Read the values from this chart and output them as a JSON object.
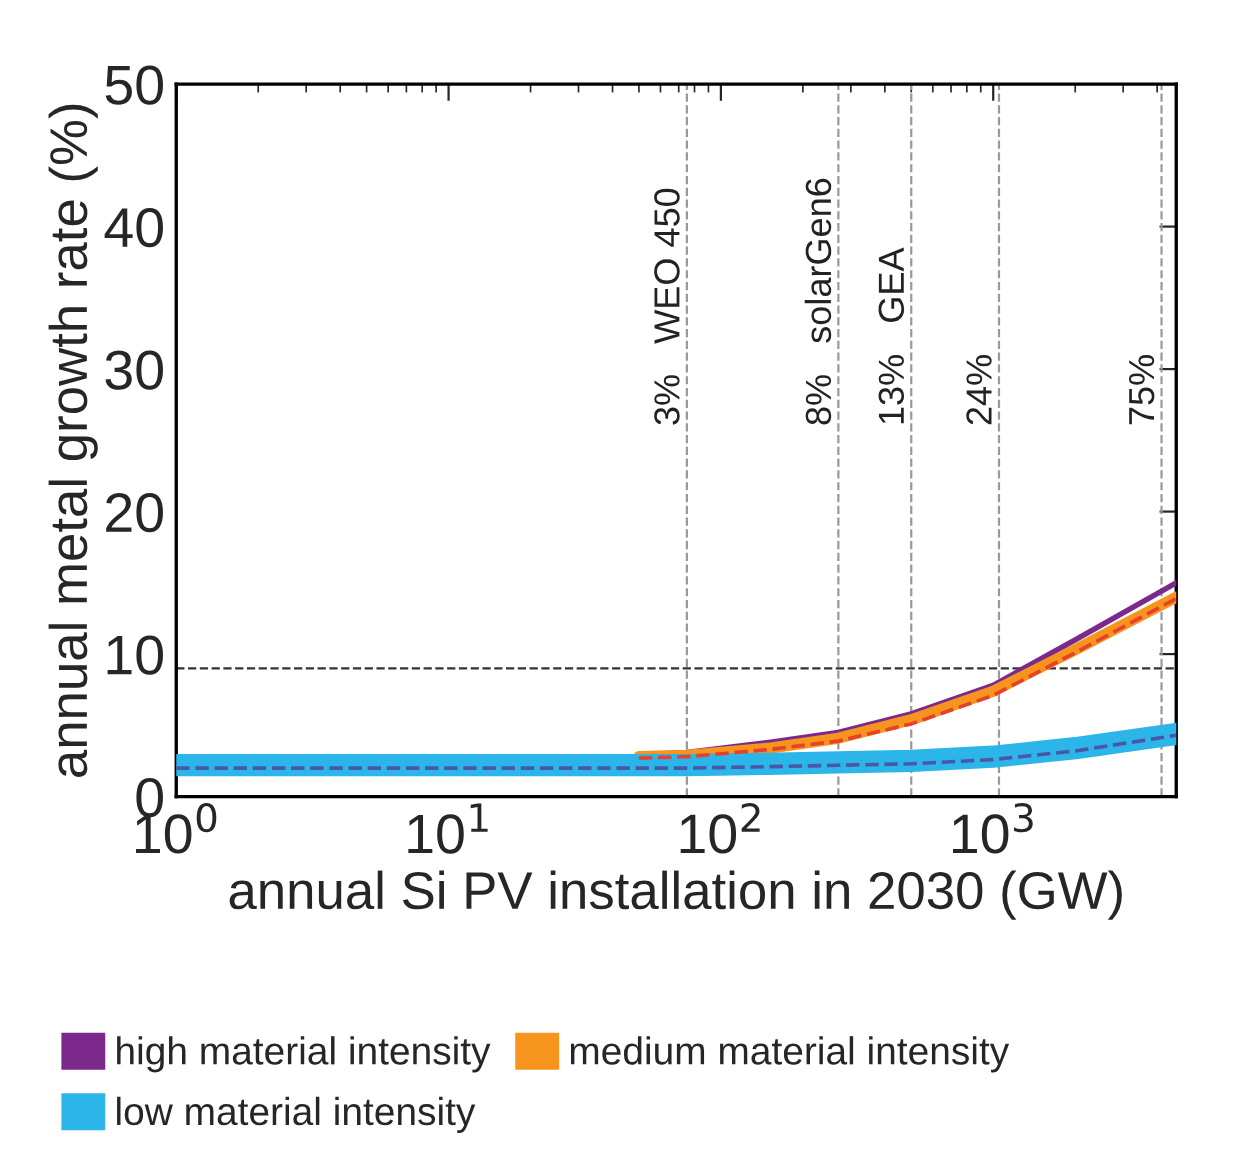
{
  "chart_data": {
    "type": "line",
    "xlabel": "annual Si PV installation in 2030 (GW)",
    "ylabel": "annual metal growth rate (%)",
    "x": [
      1,
      3,
      10,
      30,
      50,
      75,
      150,
      270,
      500,
      1000,
      2000,
      4700
    ],
    "series": [
      {
        "name": "high material intensity",
        "color": "#7b2a8c",
        "values": [
          null,
          null,
          null,
          null,
          2.9,
          3.1,
          3.8,
          4.5,
          5.8,
          7.8,
          11.0,
          15.0
        ]
      },
      {
        "name": "medium material intensity",
        "color": "#f7941d",
        "values": [
          null,
          null,
          null,
          null,
          2.8,
          2.9,
          3.4,
          4.1,
          5.4,
          7.4,
          10.3,
          14.0
        ]
      },
      {
        "color": "#e8402a",
        "line_style": "dashed",
        "values": [
          null,
          null,
          null,
          null,
          2.7,
          2.8,
          3.3,
          3.9,
          5.1,
          7.1,
          10.1,
          13.9
        ]
      },
      {
        "name": "low material intensity",
        "color": "#2bb5e8",
        "values": [
          2.2,
          2.2,
          2.2,
          2.2,
          2.2,
          2.2,
          2.3,
          2.4,
          2.5,
          2.8,
          3.4,
          4.4
        ]
      },
      {
        "color": "#4a56a6",
        "line_style": "dashed",
        "values": [
          2.0,
          2.0,
          2.0,
          2.0,
          2.0,
          2.0,
          2.1,
          2.2,
          2.3,
          2.6,
          3.2,
          4.3
        ]
      }
    ],
    "log": "x",
    "xlim": [
      1,
      4700
    ],
    "xticks": [
      {
        "value": 1,
        "label": "10$^{0}$"
      },
      {
        "value": 10,
        "label": "10$^{1}$"
      },
      {
        "value": 100,
        "label": "10$^{2}$"
      },
      {
        "value": 1000,
        "label": "10$^{3}$"
      }
    ],
    "ylim": [
      0,
      50
    ],
    "yticks": [
      0,
      10,
      20,
      30,
      40,
      50
    ],
    "ref_lines": [
      {
        "axis": "x",
        "value": 75,
        "color": "#999999",
        "line_style": "dashed"
      },
      {
        "axis": "x",
        "value": 270,
        "color": "#999999",
        "line_style": "dashed"
      },
      {
        "axis": "x",
        "value": 500,
        "color": "#999999",
        "line_style": "dashed"
      },
      {
        "axis": "x",
        "value": 1050,
        "color": "#999999",
        "line_style": "dashed"
      },
      {
        "axis": "x",
        "value": 4150,
        "color": "#999999",
        "line_style": "dashed"
      },
      {
        "axis": "y",
        "value": 9,
        "color": "#333333",
        "line_style": "dashed"
      }
    ],
    "annotations": [
      {
        "text": "3%   WEO 450",
        "x": 75,
        "y": 26
      },
      {
        "text": "8%   solarGen6",
        "x": 270,
        "y": 26
      },
      {
        "text": "13%   GEA",
        "x": 500,
        "y": 26
      },
      {
        "text": "24%",
        "x": 1050,
        "y": 26
      },
      {
        "text": "75%",
        "x": 4150,
        "y": 26
      }
    ],
    "grid": false,
    "legend": "bottom"
  }
}
